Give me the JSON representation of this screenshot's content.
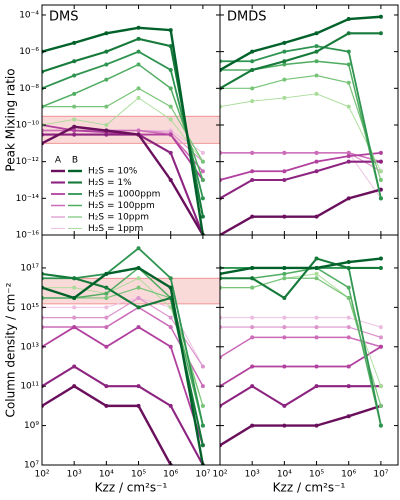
{
  "chart_data": [
    {
      "type": "line",
      "title": "DMS",
      "y_label": "Peak Mixing ratio",
      "log_x": true,
      "log_y": true,
      "x": [
        100,
        1000,
        10000,
        100000,
        1000000,
        10000000
      ],
      "xlim": [
        100,
        34000000
      ],
      "ylim": [
        1e-16,
        0.00035
      ],
      "yticks": [
        {
          "value": 0.0001,
          "label": "10⁻⁴"
        },
        {
          "value": 1e-06,
          "label": "10⁻⁶"
        },
        {
          "value": 1e-08,
          "label": "10⁻⁸"
        },
        {
          "value": 1e-10,
          "label": "10⁻¹⁰"
        },
        {
          "value": 1e-12,
          "label": "10⁻¹²"
        },
        {
          "value": 1e-14,
          "label": "10⁻¹⁴"
        },
        {
          "value": 1e-16,
          "label": "10⁻¹⁶"
        }
      ],
      "band": [
        1e-11,
        3e-10
      ],
      "band_color": "#f08080",
      "legend": {
        "columns": [
          "A",
          "B"
        ],
        "labels": [
          "H₂S = 10%",
          "H₂S = 1%",
          "H₂S = 1000ppm",
          "H₂S = 100ppm",
          "H₂S = 10ppm",
          "H₂S = 1ppm"
        ],
        "column_colors": [
          [
            "#6a0f5c",
            "#8c2480",
            "#b1409f",
            "#cc6bb8",
            "#dd93cc",
            "#ebbbe0"
          ],
          [
            "#00622a",
            "#167a3a",
            "#2e9450",
            "#4fac60",
            "#78c478",
            "#a8dc98"
          ]
        ]
      },
      "series": [
        {
          "color": "#ebbbe0",
          "values": [
            5e-11,
            5e-11,
            5e-11,
            5e-11,
            5e-11,
            3e-12
          ]
        },
        {
          "color": "#dd93cc",
          "values": [
            5e-11,
            5e-11,
            5e-11,
            5e-11,
            4e-11,
            1e-12
          ]
        },
        {
          "color": "#cc6bb8",
          "values": [
            5e-11,
            5e-11,
            5e-11,
            5e-11,
            3e-11,
            3e-13
          ]
        },
        {
          "color": "#b1409f",
          "values": [
            1e-10,
            5e-11,
            4e-11,
            3e-11,
            3e-11,
            1e-13
          ]
        },
        {
          "color": "#8c2480",
          "values": [
            3e-11,
            3e-11,
            3e-11,
            3e-11,
            3e-12,
            1e-16
          ]
        },
        {
          "color": "#6a0f5c",
          "values": [
            1e-11,
            8e-11,
            5e-11,
            3e-11,
            1e-13,
            1e-16
          ]
        },
        {
          "color": "#a8dc98",
          "values": [
            1e-10,
            2e-10,
            1e-10,
            3e-09,
            2e-10,
            1e-12
          ]
        },
        {
          "color": "#78c478",
          "values": [
            1e-09,
            1e-09,
            1e-09,
            1e-08,
            1e-09,
            1e-12
          ]
        },
        {
          "color": "#4fac60",
          "values": [
            1e-09,
            5e-09,
            3e-08,
            2e-07,
            1e-08,
            1e-13
          ]
        },
        {
          "color": "#2e9450",
          "values": [
            1e-08,
            5e-08,
            2e-07,
            1e-06,
            1e-07,
            1e-14
          ]
        },
        {
          "color": "#167a3a",
          "values": [
            8e-08,
            3e-07,
            1e-06,
            5e-06,
            2e-06,
            1e-15
          ]
        },
        {
          "color": "#00622a",
          "values": [
            1e-06,
            3e-06,
            1e-05,
            2e-05,
            1.5e-05,
            1e-16
          ]
        }
      ]
    },
    {
      "type": "line",
      "title": "DMDS",
      "log_x": true,
      "log_y": true,
      "x": [
        100,
        1000,
        10000,
        100000,
        1000000,
        10000000
      ],
      "xlim": [
        100,
        34000000
      ],
      "ylim": [
        1e-16,
        0.00035
      ],
      "series": [
        {
          "color": "#ebbbe0",
          "values": [
            3e-12,
            3e-12,
            3e-12,
            3e-12,
            3e-12,
            1e-14
          ]
        },
        {
          "color": "#dd93cc",
          "values": [
            3e-12,
            3e-12,
            3e-12,
            3e-12,
            3e-12,
            3e-13
          ]
        },
        {
          "color": "#cc6bb8",
          "values": [
            3e-12,
            3e-12,
            3e-12,
            3e-12,
            3e-12,
            1e-12
          ]
        },
        {
          "color": "#b1409f",
          "values": [
            1e-13,
            3e-13,
            3e-13,
            1e-12,
            2e-12,
            3e-12
          ]
        },
        {
          "color": "#8c2480",
          "values": [
            1e-14,
            1e-13,
            1e-13,
            3e-13,
            1e-12,
            1e-12
          ]
        },
        {
          "color": "#6a0f5c",
          "values": [
            1e-16,
            1e-15,
            1e-15,
            1e-15,
            1e-14,
            3e-14
          ]
        },
        {
          "color": "#a8dc98",
          "values": [
            1e-09,
            2e-09,
            3e-09,
            5e-09,
            1e-09,
            3e-13
          ]
        },
        {
          "color": "#78c478",
          "values": [
            1e-08,
            1e-08,
            3e-08,
            5e-08,
            2e-08,
            1e-13
          ]
        },
        {
          "color": "#4fac60",
          "values": [
            1e-07,
            1e-07,
            2e-07,
            3e-07,
            2e-07,
            1e-14
          ]
        },
        {
          "color": "#2e9450",
          "values": [
            3e-07,
            3e-07,
            1e-06,
            2e-06,
            1e-06,
            1e-14
          ]
        },
        {
          "color": "#167a3a",
          "values": [
            1e-08,
            1e-07,
            3e-07,
            1e-06,
            1e-05,
            1e-05
          ]
        },
        {
          "color": "#00622a",
          "values": [
            1e-07,
            1e-06,
            3e-06,
            1e-05,
            6e-05,
            8e-05
          ]
        }
      ]
    },
    {
      "type": "line",
      "y_label": "Column density / cm⁻²",
      "x_label": "Kzz / cm²s⁻¹",
      "log_x": true,
      "log_y": true,
      "x": [
        100,
        1000,
        10000,
        100000,
        1000000,
        10000000
      ],
      "xlim": [
        100,
        34000000
      ],
      "xticks": [
        {
          "value": 100,
          "label": "10²"
        },
        {
          "value": 1000,
          "label": "10³"
        },
        {
          "value": 10000,
          "label": "10⁴"
        },
        {
          "value": 100000,
          "label": "10⁵"
        },
        {
          "value": 1000000,
          "label": "10⁶"
        },
        {
          "value": 10000000,
          "label": "10⁷"
        }
      ],
      "ylim": [
        10000000.0,
        4.7e+18
      ],
      "yticks": [
        {
          "value": 1e+17,
          "label": "10¹⁷"
        },
        {
          "value": 1000000000000000.0,
          "label": "10¹⁵"
        },
        {
          "value": 10000000000000.0,
          "label": "10¹³"
        },
        {
          "value": 100000000000.0,
          "label": "10¹¹"
        },
        {
          "value": 1000000000.0,
          "label": "10⁹"
        },
        {
          "value": 10000000.0,
          "label": "10⁷"
        }
      ],
      "band": [
        1500000000000000.0,
        3e+16
      ],
      "band_color": "#f08080",
      "series": [
        {
          "color": "#ebbbe0",
          "values": [
            1000000000000000.0,
            1000000000000000.0,
            1000000000000000.0,
            3000000000000000.0,
            1000000000000000.0,
            1000000000000.0
          ]
        },
        {
          "color": "#dd93cc",
          "values": [
            300000000000000.0,
            300000000000000.0,
            300000000000000.0,
            3000000000000000.0,
            300000000000000.0,
            1000000000000.0
          ]
        },
        {
          "color": "#cc6bb8",
          "values": [
            100000000000000.0,
            100000000000000.0,
            100000000000000.0,
            1000000000000000.0,
            100000000000000.0,
            100000000000.0
          ]
        },
        {
          "color": "#b1409f",
          "values": [
            10000000000000.0,
            100000000000000.0,
            10000000000000.0,
            100000000000000.0,
            10000000000000.0,
            100000000.0
          ]
        },
        {
          "color": "#8c2480",
          "values": [
            100000000000.0,
            1000000000000.0,
            100000000000.0,
            100000000000.0,
            10000000000.0,
            10000000.0
          ]
        },
        {
          "color": "#6a0f5c",
          "values": [
            10000000000.0,
            100000000000.0,
            10000000000.0,
            10000000000.0,
            10000000.0,
            null
          ]
        },
        {
          "color": "#a8dc98",
          "values": [
            1e+16,
            1e+16,
            5000000000000000.0,
            3e+16,
            1000000000000000.0,
            10000000000.0
          ]
        },
        {
          "color": "#78c478",
          "values": [
            3000000000000000.0,
            3000000000000000.0,
            3000000000000000.0,
            1e+16,
            3000000000000000.0,
            10000000000.0
          ]
        },
        {
          "color": "#4fac60",
          "values": [
            3000000000000000.0,
            3000000000000000.0,
            5000000000000000.0,
            1e+17,
            3000000000000000.0,
            1000000000.0
          ]
        },
        {
          "color": "#2e9450",
          "values": [
            3e+16,
            3e+16,
            5e+16,
            1e+18,
            3e+16,
            1000000000.0
          ]
        },
        {
          "color": "#167a3a",
          "values": [
            5e+16,
            3e+16,
            1e+16,
            1000000000000000.0,
            3000000000000000.0,
            100000000.0
          ]
        },
        {
          "color": "#00622a",
          "values": [
            1e+16,
            3000000000000000.0,
            5e+16,
            1e+17,
            1e+16,
            10000000.0
          ]
        }
      ]
    },
    {
      "type": "line",
      "x_label": "Kzz / cm²s⁻¹",
      "log_x": true,
      "log_y": true,
      "x": [
        100,
        1000,
        10000,
        100000,
        1000000,
        10000000
      ],
      "xlim": [
        100,
        34000000
      ],
      "xticks": [
        {
          "value": 100,
          "label": "10²"
        },
        {
          "value": 1000,
          "label": "10³"
        },
        {
          "value": 10000,
          "label": "10⁴"
        },
        {
          "value": 100000,
          "label": "10⁵"
        },
        {
          "value": 1000000,
          "label": "10⁶"
        },
        {
          "value": 10000000,
          "label": "10⁷"
        }
      ],
      "ylim": [
        10000000.0,
        4.7e+18
      ],
      "series": [
        {
          "color": "#ebbbe0",
          "values": [
            300000000000000.0,
            300000000000000.0,
            300000000000000.0,
            300000000000000.0,
            300000000000000.0,
            100000000000000.0
          ]
        },
        {
          "color": "#dd93cc",
          "values": [
            100000000000000.0,
            100000000000000.0,
            100000000000000.0,
            100000000000000.0,
            100000000000000.0,
            30000000000000.0
          ]
        },
        {
          "color": "#cc6bb8",
          "values": [
            3000000000000.0,
            30000000000000.0,
            30000000000000.0,
            30000000000000.0,
            30000000000000.0,
            10000000000000.0
          ]
        },
        {
          "color": "#b1409f",
          "values": [
            100000000000.0,
            1000000000000.0,
            1000000000000.0,
            1000000000000.0,
            1000000000000.0,
            10000000000000.0
          ]
        },
        {
          "color": "#8c2480",
          "values": [
            10000000000.0,
            100000000000.0,
            10000000000.0,
            100000000000.0,
            100000000000.0,
            100000000000.0
          ]
        },
        {
          "color": "#6a0f5c",
          "values": [
            100000000.0,
            1000000000.0,
            1000000000.0,
            1000000000.0,
            3000000000.0,
            10000000000.0
          ]
        },
        {
          "color": "#a8dc98",
          "values": [
            1e+16,
            1e+16,
            3e+16,
            5e+16,
            3000000000000000.0,
            100000000000.0
          ]
        },
        {
          "color": "#78c478",
          "values": [
            1e+16,
            1e+16,
            3e+16,
            3e+16,
            3000000000000000.0,
            10000000000.0
          ]
        },
        {
          "color": "#4fac60",
          "values": [
            3e+16,
            3e+16,
            5e+16,
            1e+17,
            1e+16,
            1000000000.0
          ]
        },
        {
          "color": "#2e9450",
          "values": [
            1e+17,
            1e+17,
            1e+17,
            1e+17,
            1e+17,
            1000000000.0
          ]
        },
        {
          "color": "#167a3a",
          "values": [
            3e+16,
            3e+16,
            3000000000000000.0,
            3e+17,
            1e+17,
            1e+17
          ]
        },
        {
          "color": "#00622a",
          "values": [
            5e+16,
            1e+17,
            1e+17,
            1e+17,
            2e+17,
            3e+17
          ]
        }
      ]
    }
  ]
}
